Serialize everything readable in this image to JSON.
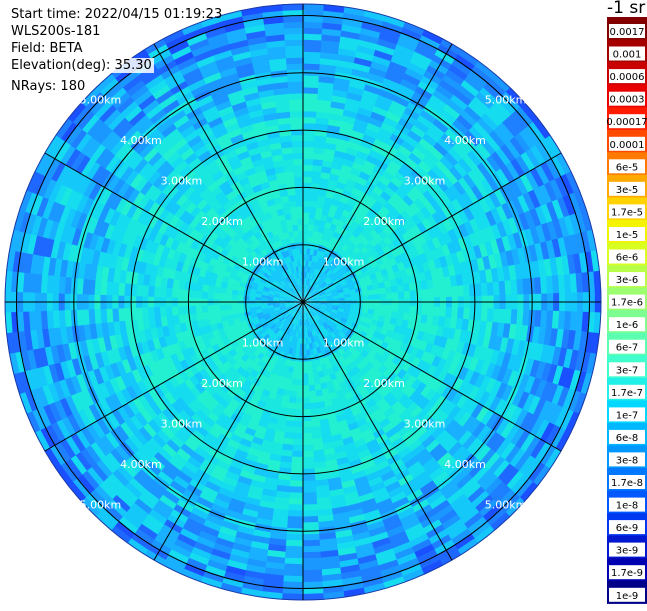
{
  "header": {
    "start_time": "Start time: 2022/04/15 01:19:23",
    "instrument": "WLS200s-181",
    "field": "Field: BETA",
    "elevation": "Elevation(deg): 35.30",
    "nrays": "NRays: 180"
  },
  "colorbar": {
    "unit": "-1 sr",
    "labels": [
      "0.0017",
      "0.001",
      "0.0006",
      "0.0003",
      "0.00017",
      "0.0001",
      "6e-5",
      "3e-5",
      "1.7e-5",
      "1e-5",
      "6e-6",
      "3e-6",
      "1.7e-6",
      "1e-6",
      "6e-7",
      "3e-7",
      "1.7e-7",
      "1e-7",
      "6e-8",
      "3e-8",
      "1.7e-8",
      "1e-8",
      "6e-9",
      "3e-9",
      "1.7e-9",
      "1e-9"
    ],
    "colors": [
      "#820000",
      "#a50000",
      "#c80000",
      "#e80000",
      "#ff1a00",
      "#ff4a00",
      "#ff7a00",
      "#ffa800",
      "#ffd200",
      "#f4f400",
      "#d8ff20",
      "#b8ff48",
      "#9cff70",
      "#7cff90",
      "#5cffb0",
      "#40ffcc",
      "#20f0e8",
      "#00d8ff",
      "#00b8ff",
      "#0098ff",
      "#0078ff",
      "#0058ff",
      "#0038f0",
      "#0018d0",
      "#0000b0",
      "#000088"
    ]
  },
  "chart_data": {
    "type": "heatmap",
    "projection": "polar (PPI scan)",
    "field": "BETA",
    "n_rays": 180,
    "ring_labels": [
      "1.00km",
      "2.00km",
      "3.00km",
      "4.00km",
      "5.00km"
    ],
    "ring_ranges_km": [
      1,
      2,
      3,
      4,
      5
    ],
    "max_range_km": 5
  }
}
